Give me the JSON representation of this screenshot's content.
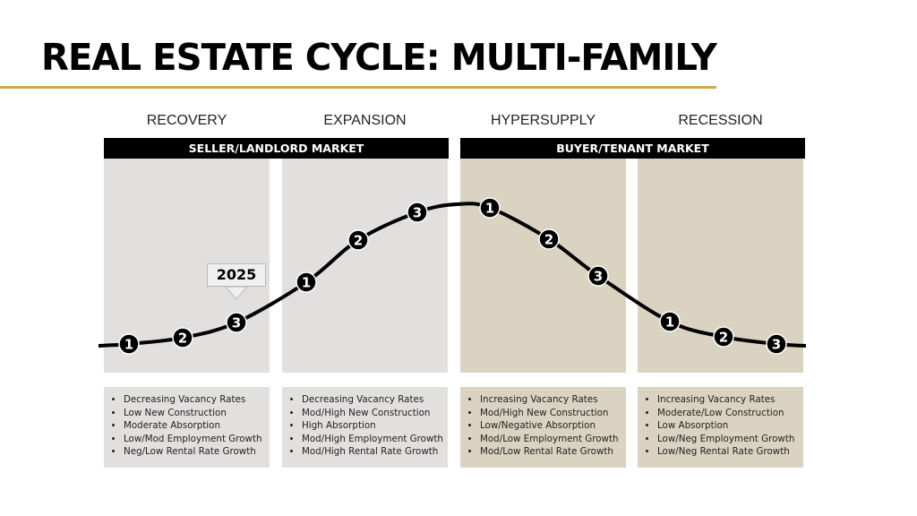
{
  "title": "REAL ESTATE CYCLE: MULTI-FAMILY",
  "colors": {
    "accent_rule": "#d4a552",
    "seller_panel": "#e2dfdf",
    "buyer_panel": "#dad3c1",
    "bar": "#000000"
  },
  "markets": [
    {
      "label": "SELLER/LANDLORD MARKET"
    },
    {
      "label": "BUYER/TENANT MARKET"
    }
  ],
  "phases": [
    {
      "label": "RECOVERY",
      "bullets": [
        "Decreasing Vacancy Rates",
        "Low New Construction",
        "Moderate Absorption",
        "Low/Mod Employment Growth",
        "Neg/Low Rental Rate Growth"
      ],
      "markers": [
        "1",
        "2",
        "3"
      ]
    },
    {
      "label": "EXPANSION",
      "bullets": [
        "Decreasing Vacancy Rates",
        "Mod/High New Construction",
        "High Absorption",
        "Mod/High Employment Growth",
        "Mod/High Rental Rate Growth"
      ],
      "markers": [
        "1",
        "2",
        "3"
      ]
    },
    {
      "label": "HYPERSUPPLY",
      "bullets": [
        "Increasing Vacancy Rates",
        "Mod/High New Construction",
        "Low/Negative Absorption",
        "Mod/Low Employment Growth",
        "Mod/Low Rental Rate Growth"
      ],
      "markers": [
        "1",
        "2",
        "3"
      ]
    },
    {
      "label": "RECESSION",
      "bullets": [
        "Increasing Vacancy Rates",
        "Moderate/Low Construction",
        "Low Absorption",
        "Low/Neg Employment Growth",
        "Low/Neg Rental Rate Growth"
      ],
      "markers": [
        "1",
        "2",
        "3"
      ]
    }
  ],
  "current_marker": {
    "label": "2025",
    "phase": "RECOVERY",
    "stage": "3"
  }
}
